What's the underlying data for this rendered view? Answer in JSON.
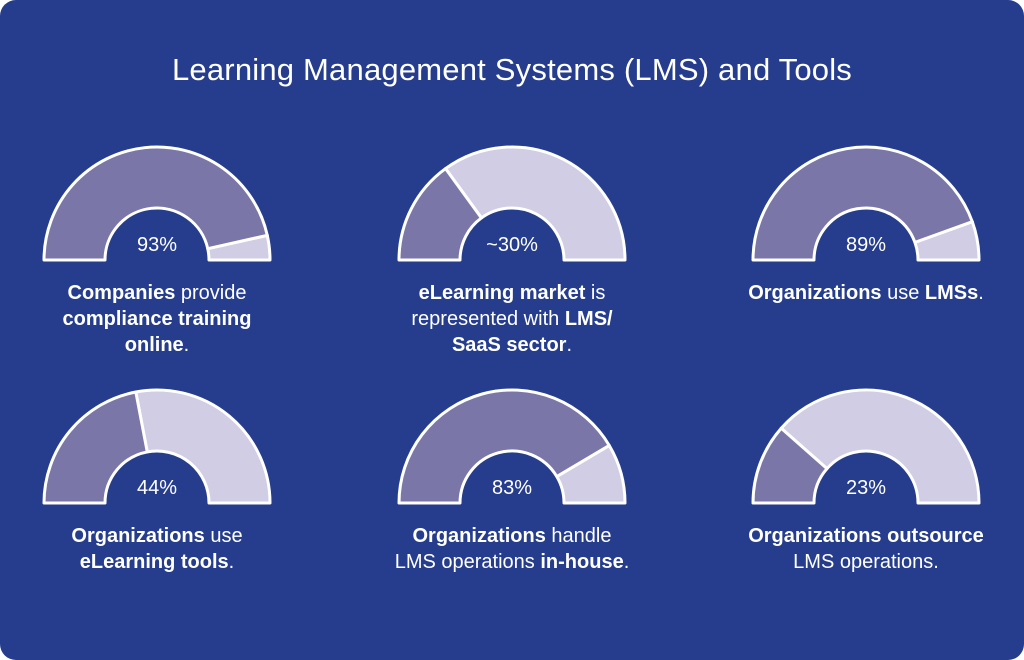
{
  "title": "Learning Management Systems (LMS) and Tools",
  "colors": {
    "background": "#253d8c",
    "fill": "#7a76a8",
    "remainder": "#d0cde4",
    "stroke": "#ffffff",
    "text": "#ffffff"
  },
  "chart_data": [
    {
      "type": "gauge",
      "value": 93,
      "max": 100,
      "label": "93%",
      "caption": [
        [
          {
            "text": "Companies",
            "bold": true
          },
          {
            "text": " provide",
            "bold": false
          }
        ],
        [
          {
            "text": "compliance training",
            "bold": true
          }
        ],
        [
          {
            "text": "online",
            "bold": true
          },
          {
            "text": ".",
            "bold": false
          }
        ]
      ]
    },
    {
      "type": "gauge",
      "value": 30,
      "max": 100,
      "label": "~30%",
      "caption": [
        [
          {
            "text": "eLearning market",
            "bold": true
          },
          {
            "text": " is",
            "bold": false
          }
        ],
        [
          {
            "text": "represented with ",
            "bold": false
          },
          {
            "text": "LMS/",
            "bold": true
          }
        ],
        [
          {
            "text": "SaaS sector",
            "bold": true
          },
          {
            "text": ".",
            "bold": false
          }
        ]
      ]
    },
    {
      "type": "gauge",
      "value": 89,
      "max": 100,
      "label": "89%",
      "caption": [
        [
          {
            "text": "Organizations",
            "bold": true
          },
          {
            "text": " use ",
            "bold": false
          },
          {
            "text": "LMSs",
            "bold": true
          },
          {
            "text": ".",
            "bold": false
          }
        ]
      ]
    },
    {
      "type": "gauge",
      "value": 44,
      "max": 100,
      "label": "44%",
      "caption": [
        [
          {
            "text": "Organizations",
            "bold": true
          },
          {
            "text": " use",
            "bold": false
          }
        ],
        [
          {
            "text": "eLearning tools",
            "bold": true
          },
          {
            "text": ".",
            "bold": false
          }
        ]
      ]
    },
    {
      "type": "gauge",
      "value": 83,
      "max": 100,
      "label": "83%",
      "caption": [
        [
          {
            "text": "Organizations",
            "bold": true
          },
          {
            "text": " handle",
            "bold": false
          }
        ],
        [
          {
            "text": "LMS operations ",
            "bold": false
          },
          {
            "text": "in-house",
            "bold": true
          },
          {
            "text": ".",
            "bold": false
          }
        ]
      ]
    },
    {
      "type": "gauge",
      "value": 23,
      "max": 100,
      "label": "23%",
      "caption": [
        [
          {
            "text": "Organizations outsource",
            "bold": true
          }
        ],
        [
          {
            "text": "LMS operations.",
            "bold": false
          }
        ]
      ]
    }
  ]
}
